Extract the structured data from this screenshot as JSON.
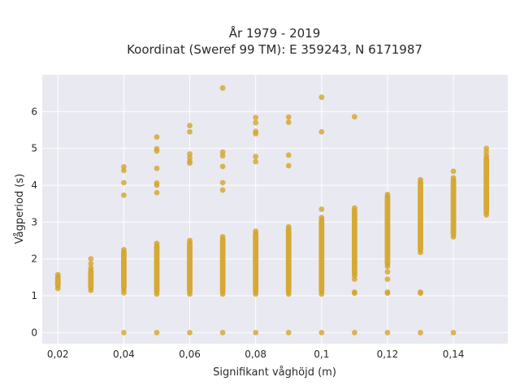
{
  "chart_data": {
    "type": "scatter",
    "title_lines": [
      "År 1979 - 2019",
      "Koordinat (Sweref 99 TM): E 359243, N 6171987"
    ],
    "xlabel": "Signifikant våghöjd (m)",
    "ylabel": "Vågperiod (s)",
    "xlim": [
      0.01525,
      0.1565
    ],
    "ylim": [
      -0.3,
      7.0
    ],
    "x_ticks": [
      0.02,
      0.04,
      0.06,
      0.08,
      0.1,
      0.12,
      0.14
    ],
    "x_tick_labels": [
      "0,02",
      "0,04",
      "0,06",
      "0,08",
      "0,1",
      "0,12",
      "0,14"
    ],
    "y_ticks": [
      0,
      1,
      2,
      3,
      4,
      5,
      6
    ],
    "y_tick_labels": [
      "0",
      "1",
      "2",
      "3",
      "4",
      "5",
      "6"
    ],
    "grid": true,
    "background": "#e9e9f1",
    "marker_color": "#d4a52a",
    "columns": [
      {
        "x": 0.02,
        "range": [
          1.2,
          1.57
        ],
        "points": []
      },
      {
        "x": 0.03,
        "range": [
          1.15,
          1.75
        ],
        "points": [
          1.87,
          2.0
        ]
      },
      {
        "x": 0.04,
        "range": [
          1.15,
          2.25
        ],
        "points": [
          0.0,
          1.08,
          3.73,
          4.07,
          4.4,
          4.5
        ]
      },
      {
        "x": 0.05,
        "range": [
          1.05,
          2.42
        ],
        "points": [
          0.0,
          3.8,
          4.0,
          4.06,
          4.46,
          4.93,
          4.99,
          5.31
        ]
      },
      {
        "x": 0.06,
        "range": [
          1.05,
          2.5
        ],
        "points": [
          0.0,
          4.6,
          4.65,
          4.75,
          4.85,
          5.45,
          5.62
        ]
      },
      {
        "x": 0.07,
        "range": [
          1.05,
          2.6
        ],
        "points": [
          0.0,
          3.87,
          4.07,
          4.51,
          4.8,
          4.9,
          6.64
        ]
      },
      {
        "x": 0.08,
        "range": [
          1.05,
          2.75
        ],
        "points": [
          0.0,
          4.64,
          4.78,
          5.4,
          5.46,
          5.7,
          5.84
        ]
      },
      {
        "x": 0.09,
        "range": [
          1.05,
          2.87
        ],
        "points": [
          0.0,
          4.53,
          4.82,
          5.71,
          5.85
        ]
      },
      {
        "x": 0.1,
        "range": [
          1.05,
          3.12
        ],
        "points": [
          0.0,
          3.35,
          5.45,
          6.39
        ]
      },
      {
        "x": 0.11,
        "range": [
          1.55,
          3.38
        ],
        "points": [
          0.0,
          1.07,
          1.1,
          1.45,
          5.86
        ]
      },
      {
        "x": 0.12,
        "range": [
          1.8,
          3.75
        ],
        "points": [
          0.0,
          1.07,
          1.1,
          1.45,
          1.65
        ]
      },
      {
        "x": 0.13,
        "range": [
          2.18,
          4.15
        ],
        "points": [
          0.0,
          1.07,
          1.1
        ]
      },
      {
        "x": 0.14,
        "range": [
          2.6,
          4.2
        ],
        "points": [
          0.0,
          4.38
        ]
      },
      {
        "x": 0.15,
        "range": [
          3.2,
          4.8
        ],
        "points": [
          4.9,
          5.0
        ]
      }
    ]
  }
}
